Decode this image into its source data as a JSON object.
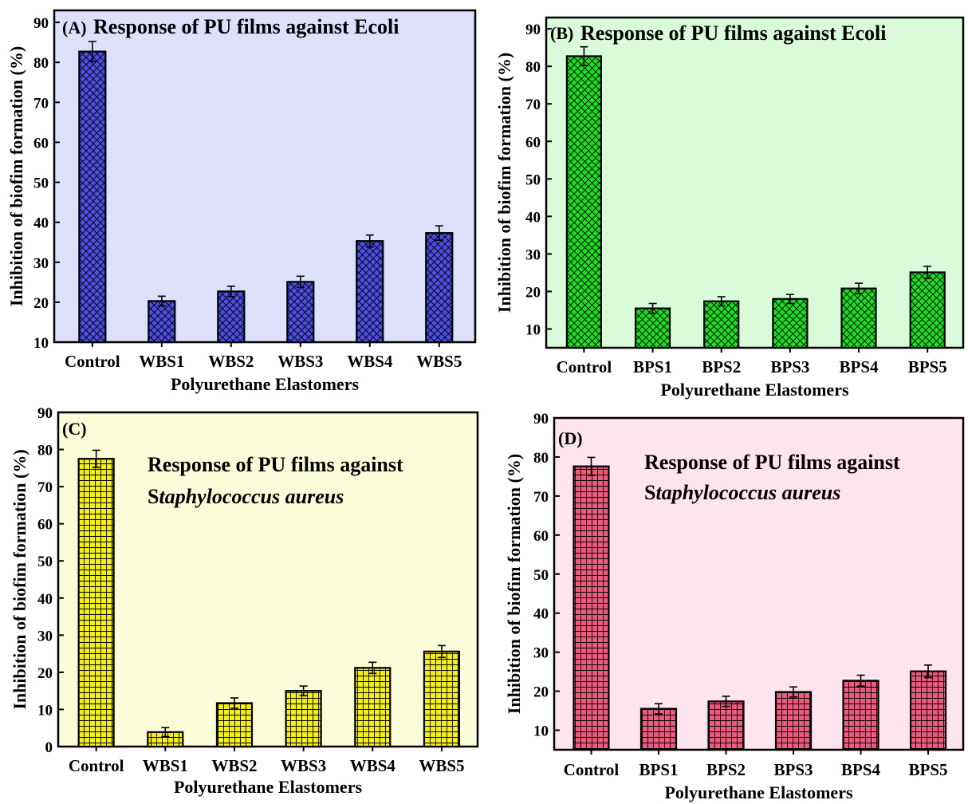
{
  "figure": {
    "panels": [
      {
        "letter": "(A)",
        "title_lines": [
          [
            "Response of PU films against Ecoli"
          ]
        ],
        "background": "#dee0fb",
        "bar_color": "#4a4ee0",
        "pattern": "crosshatch",
        "xlabel": "Polyurethane Elastomers",
        "ylabel": "Inhibition of biofim formation (%)"
      },
      {
        "letter": "(B)",
        "title_lines": [
          [
            "Response of PU films against Ecoli"
          ]
        ],
        "background": "#dafbd9",
        "bar_color": "#1fdc24",
        "pattern": "crosshatch",
        "xlabel": "Polyurethane Elastomers",
        "ylabel": "Inhibition of biofim formation (%)"
      },
      {
        "letter": "(C)",
        "title_lines": [
          [
            "Response of PU films against"
          ],
          [
            "S",
            "taphylococcus aureus"
          ]
        ],
        "background": "#fbfdd9",
        "bar_color": "#f4ee1a",
        "pattern": "grid",
        "xlabel": "Polyurethane Elastomers",
        "ylabel": "Inhibition of biofim formation (%)"
      },
      {
        "letter": "(D)",
        "title_lines": [
          [
            "Response of PU films against"
          ],
          [
            "S",
            "taphylococcus aureus"
          ]
        ],
        "background": "#fde4ee",
        "bar_color": "#ee5b7e",
        "pattern": "grid",
        "xlabel": "Polyurethane Elastomers",
        "ylabel": "Inhibition of biofim formation (%)"
      }
    ]
  },
  "chart_data": [
    {
      "type": "bar",
      "categories": [
        "Control",
        "WBS1",
        "WBS2",
        "WBS3",
        "WBS4",
        "WBS5"
      ],
      "values": [
        82.7,
        20.3,
        22.7,
        25.1,
        35.3,
        37.3
      ],
      "errors": [
        2.5,
        1.2,
        1.3,
        1.4,
        1.5,
        1.8
      ],
      "title": "Response of PU films against Ecoli",
      "xlabel": "Polyurethane Elastomers",
      "ylabel": "Inhibition of biofim formation (%)",
      "ylim": [
        10,
        93
      ],
      "yticks": [
        10,
        20,
        30,
        40,
        50,
        60,
        70,
        80,
        90
      ],
      "grid": false
    },
    {
      "type": "bar",
      "categories": [
        "Control",
        "BPS1",
        "BPS2",
        "BPS3",
        "BPS4",
        "BPS5"
      ],
      "values": [
        82.7,
        15.5,
        17.4,
        18.0,
        20.8,
        25.1
      ],
      "errors": [
        2.5,
        1.3,
        1.2,
        1.2,
        1.4,
        1.6
      ],
      "title": "Response of PU films against Ecoli",
      "xlabel": "Polyurethane Elastomers",
      "ylabel": "Inhibition of biofim formation (%)",
      "ylim": [
        5,
        93
      ],
      "yticks": [
        10,
        20,
        30,
        40,
        50,
        60,
        70,
        80,
        90
      ],
      "grid": false
    },
    {
      "type": "bar",
      "categories": [
        "Control",
        "WBS1",
        "WBS2",
        "WBS3",
        "WBS4",
        "WBS5"
      ],
      "values": [
        77.5,
        3.9,
        11.7,
        15.0,
        21.2,
        25.6
      ],
      "errors": [
        2.3,
        1.2,
        1.4,
        1.3,
        1.5,
        1.6
      ],
      "title": "Response of PU films against Staphylococcus aureus",
      "xlabel": "Polyurethane Elastomers",
      "ylabel": "Inhibition of biofim formation (%)",
      "ylim": [
        0,
        90
      ],
      "yticks": [
        0,
        10,
        20,
        30,
        40,
        50,
        60,
        70,
        80,
        90
      ],
      "grid": false
    },
    {
      "type": "bar",
      "categories": [
        "Control",
        "BPS1",
        "BPS2",
        "BPS3",
        "BPS4",
        "BPS5"
      ],
      "values": [
        77.6,
        15.5,
        17.4,
        19.8,
        22.7,
        25.1
      ],
      "errors": [
        2.3,
        1.3,
        1.3,
        1.3,
        1.4,
        1.6
      ],
      "title": "Response of PU films against Staphylococcus aureus",
      "xlabel": "Polyurethane Elastomers",
      "ylabel": "Inhibition of biofim formation (%)",
      "ylim": [
        5,
        90
      ],
      "yticks": [
        10,
        20,
        30,
        40,
        50,
        60,
        70,
        80,
        90
      ],
      "grid": false
    }
  ]
}
